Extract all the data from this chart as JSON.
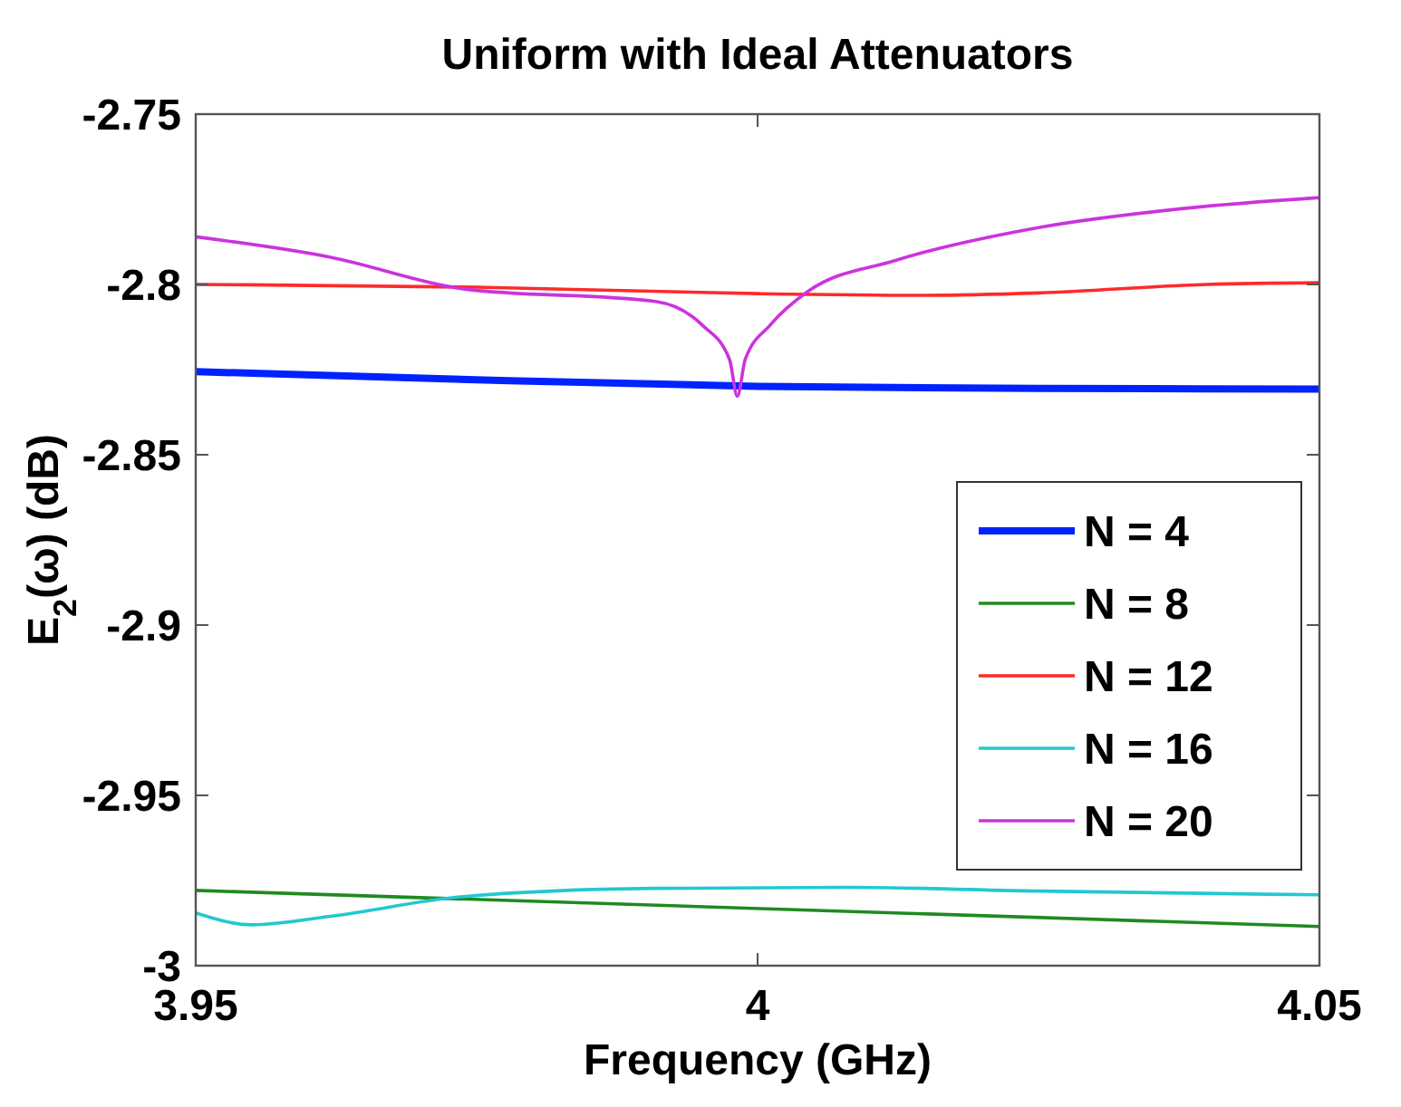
{
  "chart_data": {
    "type": "line",
    "title": "Uniform with Ideal Attenuators",
    "xlabel": "Frequency (GHz)",
    "ylabel": "E$_{2}$(ω) (dB)",
    "xlim": [
      3.95,
      4.05
    ],
    "xticks": [
      3.95,
      4,
      4.05
    ],
    "ylim": [
      -3,
      -2.75
    ],
    "yticks": [
      -3,
      -2.95,
      -2.9,
      -2.85,
      -2.8,
      -2.75
    ],
    "legend": "right",
    "grid": false,
    "series": [
      {
        "name": "N = 4",
        "color": "#0022ff",
        "x": [
          3.95,
          3.975,
          4.0,
          4.025,
          4.05
        ],
        "values": [
          -2.8256,
          -2.828,
          -2.8299,
          -2.8305,
          -2.8307
        ]
      },
      {
        "name": "N = 8",
        "color": "#1f8a1f",
        "x": [
          3.95,
          4.05
        ],
        "values": [
          -2.9779,
          -2.9885
        ]
      },
      {
        "name": "N = 12",
        "color": "#ff2a2a",
        "x": [
          3.95,
          3.975,
          4.0,
          4.015,
          4.025,
          4.04,
          4.05
        ],
        "values": [
          -2.8,
          -2.8008,
          -2.8027,
          -2.8032,
          -2.8025,
          -2.8,
          -2.7995
        ]
      },
      {
        "name": "N = 16",
        "color": "#22c8d2",
        "x": [
          3.95,
          3.955,
          3.962,
          3.9738,
          3.9909,
          4.008,
          4.025,
          4.05
        ],
        "values": [
          -2.9845,
          -2.988,
          -2.9855,
          -2.9797,
          -2.9773,
          -2.977,
          -2.9781,
          -2.9792
        ]
      },
      {
        "name": "N = 20",
        "color": "#cc33dd",
        "x": [
          3.95,
          3.962,
          3.9738,
          3.9909,
          3.9951,
          3.9975,
          3.9982,
          3.9989,
          4.0011,
          4.0045,
          4.0122,
          4.025,
          4.0379,
          4.05
        ],
        "values": [
          -2.786,
          -2.792,
          -2.8013,
          -2.805,
          -2.812,
          -2.822,
          -2.8328,
          -2.822,
          -2.812,
          -2.802,
          -2.793,
          -2.7833,
          -2.7777,
          -2.7745
        ]
      }
    ]
  }
}
